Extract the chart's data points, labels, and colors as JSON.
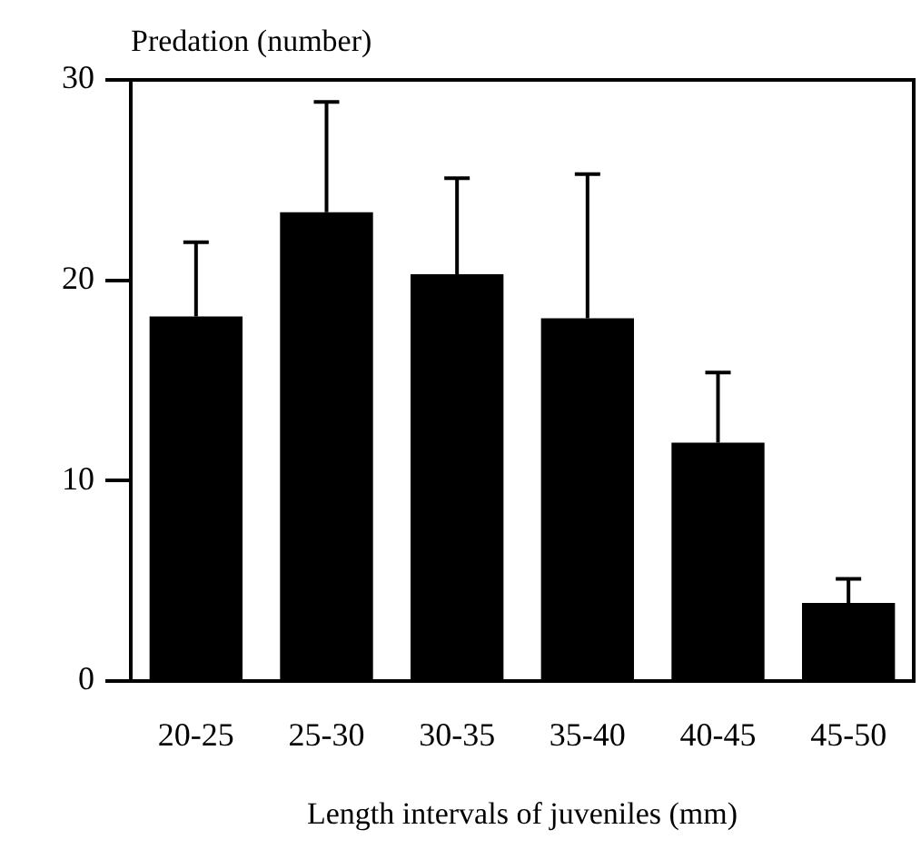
{
  "chart_data": {
    "type": "bar",
    "ylabel": "Predation (number)",
    "xlabel": "Length intervals of juveniles (mm)",
    "categories": [
      "20-25",
      "25-30",
      "30-35",
      "35-40",
      "40-45",
      "45-50"
    ],
    "values": [
      18.2,
      23.4,
      20.3,
      18.1,
      11.9,
      3.9
    ],
    "errors": [
      [
        18.2,
        21.9
      ],
      [
        23.4,
        28.9
      ],
      [
        20.3,
        25.1
      ],
      [
        18.1,
        25.3
      ],
      [
        11.9,
        15.4
      ],
      [
        3.9,
        5.1
      ]
    ],
    "color": "#000000",
    "ylim": [
      0,
      30
    ],
    "yticks": [
      0,
      10,
      20,
      30
    ],
    "grid": false,
    "legend": false
  }
}
